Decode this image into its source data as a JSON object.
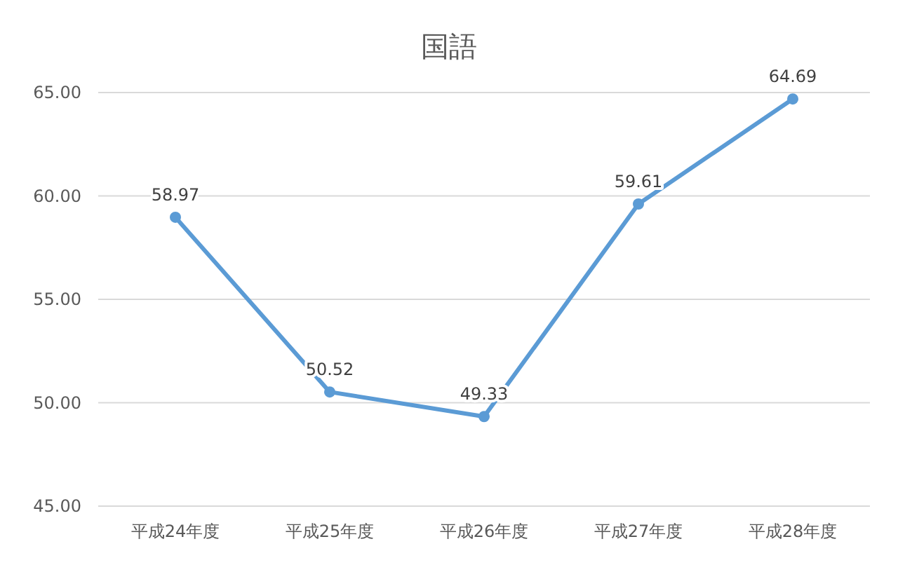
{
  "chart_data": {
    "type": "line",
    "title": "国語",
    "categories": [
      "平成24年度",
      "平成25年度",
      "平成26年度",
      "平成27年度",
      "平成28年度"
    ],
    "series": [
      {
        "color": "#5b9bd5",
        "values": [
          58.97,
          50.52,
          49.33,
          59.61,
          64.69
        ]
      }
    ],
    "ylim": [
      45,
      65
    ],
    "yticks": [
      {
        "value": 45,
        "label": "45.00"
      },
      {
        "value": 50,
        "label": "50.00"
      },
      {
        "value": 55,
        "label": "55.00"
      },
      {
        "value": 60,
        "label": "60.00"
      },
      {
        "value": 65,
        "label": "65.00"
      }
    ],
    "grid": "y",
    "marker": "circle",
    "line_style": "solid",
    "data_labels": true
  }
}
